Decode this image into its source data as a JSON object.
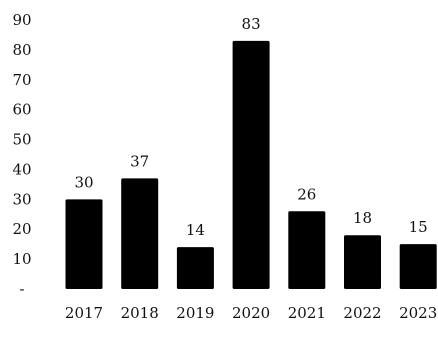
{
  "chart_data": {
    "type": "bar",
    "title": "",
    "xlabel": "",
    "ylabel": "",
    "categories": [
      "2017",
      "2018",
      "2019",
      "2020",
      "2021",
      "2022",
      "2023"
    ],
    "values": [
      30,
      37,
      14,
      83,
      26,
      18,
      15
    ],
    "y_ticks": [
      "-",
      "10",
      "20",
      "30",
      "40",
      "50",
      "60",
      "70",
      "80",
      "90"
    ],
    "ylim": [
      0,
      90
    ],
    "grid": false,
    "legend": "none",
    "bar_color": "#000000",
    "data_labels": true
  }
}
